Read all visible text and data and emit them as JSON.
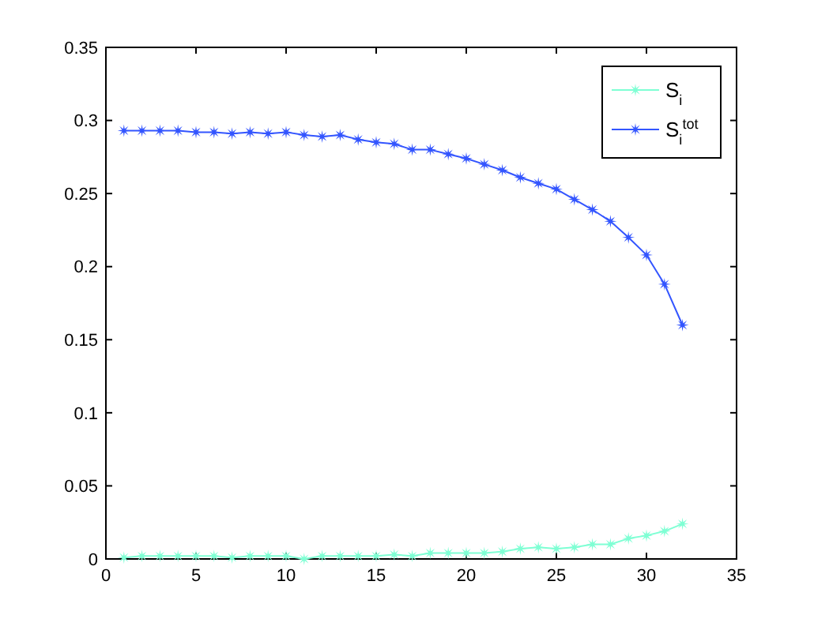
{
  "chart_data": {
    "type": "line",
    "x": [
      1,
      2,
      3,
      4,
      5,
      6,
      7,
      8,
      9,
      10,
      11,
      12,
      13,
      14,
      15,
      16,
      17,
      18,
      19,
      20,
      21,
      22,
      23,
      24,
      25,
      26,
      27,
      28,
      29,
      30,
      31,
      32
    ],
    "series": [
      {
        "name": "S$_{i}$",
        "color": "#7fffd4",
        "values": [
          0.001,
          0.002,
          0.002,
          0.002,
          0.002,
          0.002,
          0.001,
          0.002,
          0.002,
          0.002,
          0.0,
          0.002,
          0.002,
          0.002,
          0.002,
          0.003,
          0.002,
          0.004,
          0.004,
          0.004,
          0.004,
          0.005,
          0.007,
          0.008,
          0.007,
          0.008,
          0.01,
          0.01,
          0.014,
          0.016,
          0.019,
          0.024
        ]
      },
      {
        "name": "S$_{i}$$^{tot}$",
        "color": "#3355ff",
        "values": [
          0.293,
          0.293,
          0.293,
          0.293,
          0.292,
          0.292,
          0.291,
          0.292,
          0.291,
          0.292,
          0.29,
          0.289,
          0.29,
          0.287,
          0.285,
          0.284,
          0.28,
          0.28,
          0.277,
          0.274,
          0.27,
          0.266,
          0.261,
          0.257,
          0.253,
          0.246,
          0.239,
          0.231,
          0.22,
          0.208,
          0.188,
          0.16
        ]
      }
    ],
    "xlim": [
      0,
      35
    ],
    "xticks": [
      0,
      5,
      10,
      15,
      20,
      25,
      30,
      35
    ],
    "ylim": [
      0,
      0.35
    ],
    "yticks": [
      0,
      0.05,
      0.1,
      0.15,
      0.2,
      0.25,
      0.3,
      0.35
    ],
    "grid": false,
    "legend": "top right",
    "marker": "star",
    "line_style": "solid"
  }
}
